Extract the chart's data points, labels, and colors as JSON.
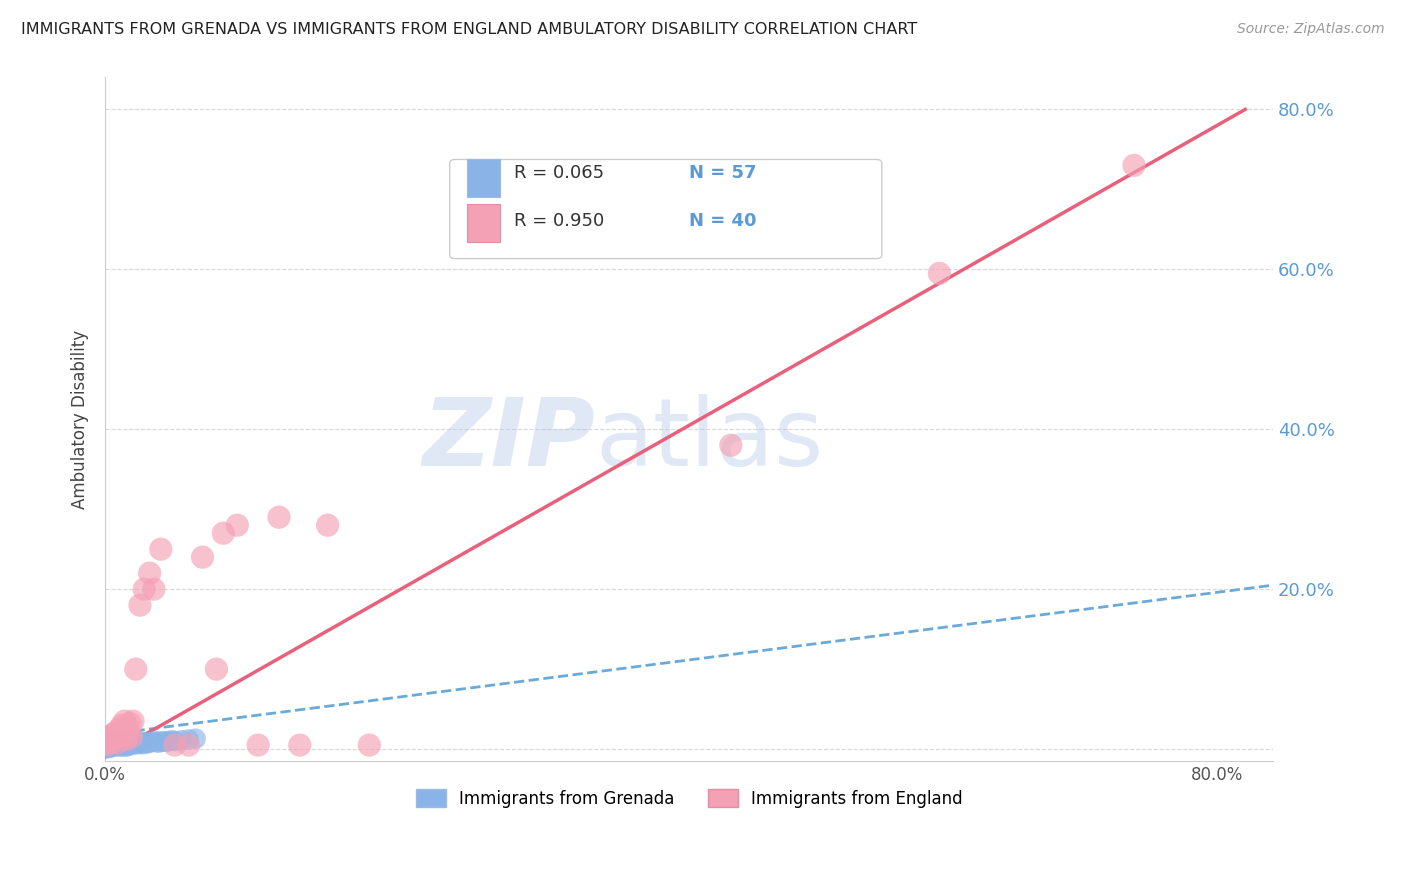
{
  "title": "IMMIGRANTS FROM GRENADA VS IMMIGRANTS FROM ENGLAND AMBULATORY DISABILITY CORRELATION CHART",
  "source": "Source: ZipAtlas.com",
  "ylabel": "Ambulatory Disability",
  "grenada_color": "#8AB4E8",
  "england_color": "#F4A0B5",
  "grenada_R": 0.065,
  "grenada_N": 57,
  "england_R": 0.95,
  "england_N": 40,
  "grenada_line_color": "#6AAAD8",
  "england_line_color": "#E8607A",
  "legend_label_grenada": "Immigrants from Grenada",
  "legend_label_england": "Immigrants from England",
  "watermark_zip": "ZIP",
  "watermark_atlas": "atlas",
  "xlim": [
    0.0,
    0.84
  ],
  "ylim": [
    -0.015,
    0.84
  ],
  "background_color": "#ffffff",
  "grid_color": "#d8d8d8",
  "title_color": "#222222",
  "tick_label_color_right": "#5B9BD5",
  "source_color": "#999999",
  "grenada_x": [
    0.001,
    0.002,
    0.002,
    0.003,
    0.003,
    0.004,
    0.004,
    0.005,
    0.005,
    0.006,
    0.006,
    0.007,
    0.007,
    0.008,
    0.008,
    0.009,
    0.009,
    0.01,
    0.01,
    0.011,
    0.011,
    0.012,
    0.012,
    0.013,
    0.013,
    0.014,
    0.014,
    0.015,
    0.015,
    0.016,
    0.016,
    0.017,
    0.018,
    0.019,
    0.02,
    0.021,
    0.022,
    0.023,
    0.024,
    0.025,
    0.026,
    0.027,
    0.028,
    0.03,
    0.032,
    0.034,
    0.036,
    0.038,
    0.04,
    0.042,
    0.044,
    0.046,
    0.048,
    0.05,
    0.055,
    0.06,
    0.065
  ],
  "grenada_y": [
    0.002,
    0.004,
    0.001,
    0.005,
    0.003,
    0.006,
    0.002,
    0.007,
    0.004,
    0.008,
    0.003,
    0.009,
    0.005,
    0.01,
    0.004,
    0.011,
    0.006,
    0.012,
    0.005,
    0.008,
    0.003,
    0.007,
    0.004,
    0.009,
    0.006,
    0.01,
    0.005,
    0.008,
    0.003,
    0.007,
    0.004,
    0.009,
    0.006,
    0.005,
    0.008,
    0.007,
    0.009,
    0.006,
    0.01,
    0.007,
    0.008,
    0.006,
    0.009,
    0.007,
    0.008,
    0.009,
    0.01,
    0.008,
    0.009,
    0.01,
    0.009,
    0.01,
    0.011,
    0.01,
    0.011,
    0.012,
    0.013
  ],
  "england_x": [
    0.001,
    0.002,
    0.003,
    0.004,
    0.005,
    0.006,
    0.007,
    0.008,
    0.009,
    0.01,
    0.011,
    0.012,
    0.013,
    0.014,
    0.015,
    0.016,
    0.017,
    0.018,
    0.019,
    0.02,
    0.022,
    0.025,
    0.028,
    0.032,
    0.035,
    0.04,
    0.05,
    0.06,
    0.07,
    0.08,
    0.085,
    0.095,
    0.11,
    0.125,
    0.14,
    0.16,
    0.19,
    0.45,
    0.6,
    0.74
  ],
  "england_y": [
    0.005,
    0.01,
    0.015,
    0.008,
    0.018,
    0.012,
    0.02,
    0.015,
    0.008,
    0.025,
    0.018,
    0.03,
    0.022,
    0.035,
    0.012,
    0.028,
    0.02,
    0.032,
    0.015,
    0.035,
    0.1,
    0.18,
    0.2,
    0.22,
    0.2,
    0.25,
    0.005,
    0.005,
    0.24,
    0.1,
    0.27,
    0.28,
    0.005,
    0.29,
    0.005,
    0.28,
    0.005,
    0.38,
    0.595,
    0.73
  ],
  "grenada_line_start_x": 0.0,
  "grenada_line_end_x": 0.84,
  "grenada_line_start_y": 0.018,
  "grenada_line_end_y": 0.205,
  "england_line_start_x": 0.0,
  "england_line_end_x": 0.82,
  "england_line_start_y": -0.01,
  "england_line_end_y": 0.8
}
